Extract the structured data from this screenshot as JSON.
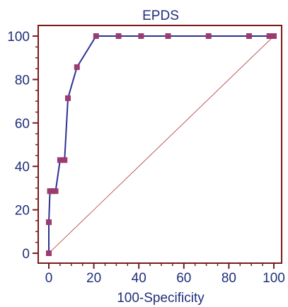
{
  "chart_data": {
    "type": "line",
    "title": "EPDS",
    "xlabel": "100-Specificity",
    "ylabel": "",
    "xlim": [
      0,
      100
    ],
    "ylim": [
      0,
      100
    ],
    "xticks": [
      0,
      20,
      40,
      60,
      80,
      100
    ],
    "yticks": [
      0,
      20,
      40,
      60,
      80,
      100
    ],
    "grid": false,
    "series": [
      {
        "x": [
          0,
          0,
          0.5,
          1.5,
          3,
          5,
          7,
          8.5,
          12.5,
          21,
          31,
          41,
          53,
          71,
          89,
          98,
          100
        ],
        "y": [
          0,
          14.3,
          28.6,
          28.6,
          28.6,
          42.9,
          42.9,
          71.4,
          85.7,
          100,
          100,
          100,
          100,
          100,
          100,
          100,
          100
        ],
        "color": "#2e3192",
        "marker_color": "#9b3b6e"
      }
    ],
    "reference_line": {
      "x": [
        0,
        100
      ],
      "y": [
        0,
        100
      ],
      "color": "#b03030"
    }
  },
  "colors": {
    "axis": "#7a1a1a",
    "text": "#1f2f7a"
  }
}
